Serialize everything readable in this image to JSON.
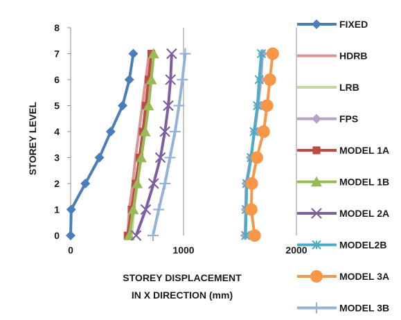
{
  "chart_data": {
    "type": "line",
    "ylabel": "STOREY LEVEL",
    "xlabel_lines": [
      "STOREY DISPLACEMENT",
      "IN X DIRECTION (mm)"
    ],
    "xlim": [
      0,
      2000
    ],
    "ylim": [
      0,
      8
    ],
    "x_ticks": [
      "0",
      "1000",
      "2000"
    ],
    "y_ticks": [
      "0",
      "1",
      "2",
      "3",
      "4",
      "5",
      "6",
      "7",
      "8"
    ],
    "grid": "vertical",
    "legend_position": "right",
    "series": [
      {
        "name": "FIXED",
        "color": "#4a7ebb",
        "marker": "diamond",
        "x": [
          0,
          5,
          130,
          255,
          355,
          460,
          520,
          555
        ],
        "y": [
          0,
          1,
          2,
          3,
          4,
          5,
          6,
          7
        ]
      },
      {
        "name": "HDRB",
        "color": "#d99694",
        "marker": "none",
        "x": [
          505,
          520,
          550,
          575,
          605,
          635,
          665,
          695
        ],
        "y": [
          0,
          1,
          2,
          3,
          4,
          5,
          6,
          7
        ]
      },
      {
        "name": "LRB",
        "color": "#c3d69b",
        "marker": "none",
        "x": [
          540,
          560,
          590,
          620,
          650,
          680,
          710,
          740
        ],
        "y": [
          0,
          1,
          2,
          3,
          4,
          5,
          6,
          7
        ]
      },
      {
        "name": "FPS",
        "color": "#b3a2c7",
        "marker": "diamond",
        "x": [
          1545,
          1550,
          1555,
          1595,
          1630,
          1660,
          1685,
          1700
        ],
        "y": [
          0,
          1,
          2,
          3,
          4,
          5,
          6,
          7
        ]
      },
      {
        "name": "MODEL 1A",
        "color": "#be4b48",
        "marker": "square",
        "x": [
          505,
          540,
          575,
          610,
          640,
          665,
          690,
          715
        ],
        "y": [
          0,
          1,
          2,
          3,
          4,
          5,
          6,
          7
        ]
      },
      {
        "name": "MODEL 1B",
        "color": "#98b954",
        "marker": "triangle",
        "x": [
          520,
          555,
          590,
          625,
          660,
          690,
          715,
          735
        ],
        "y": [
          0,
          1,
          2,
          3,
          4,
          5,
          6,
          7
        ]
      },
      {
        "name": "MODEL 2A",
        "color": "#7d5fa0",
        "marker": "x",
        "x": [
          580,
          665,
          735,
          795,
          835,
          865,
          885,
          895
        ],
        "y": [
          0,
          1,
          2,
          3,
          4,
          5,
          6,
          7
        ]
      },
      {
        "name": "MODEL2B",
        "color": "#4bacc6",
        "marker": "asterisk",
        "x": [
          1550,
          1555,
          1560,
          1600,
          1625,
          1655,
          1670,
          1690
        ],
        "y": [
          0,
          1,
          2,
          3,
          4,
          5,
          6,
          7
        ]
      },
      {
        "name": "MODEL 3A",
        "color": "#f79646",
        "marker": "circle",
        "x": [
          1630,
          1600,
          1605,
          1650,
          1710,
          1740,
          1765,
          1790
        ],
        "y": [
          0,
          1,
          2,
          3,
          4,
          5,
          6,
          7
        ]
      },
      {
        "name": "MODEL 3B",
        "color": "#95b3d7",
        "marker": "plus",
        "x": [
          730,
          780,
          835,
          880,
          925,
          960,
          990,
          1015
        ],
        "y": [
          0,
          1,
          2,
          3,
          4,
          5,
          6,
          7
        ]
      }
    ]
  }
}
